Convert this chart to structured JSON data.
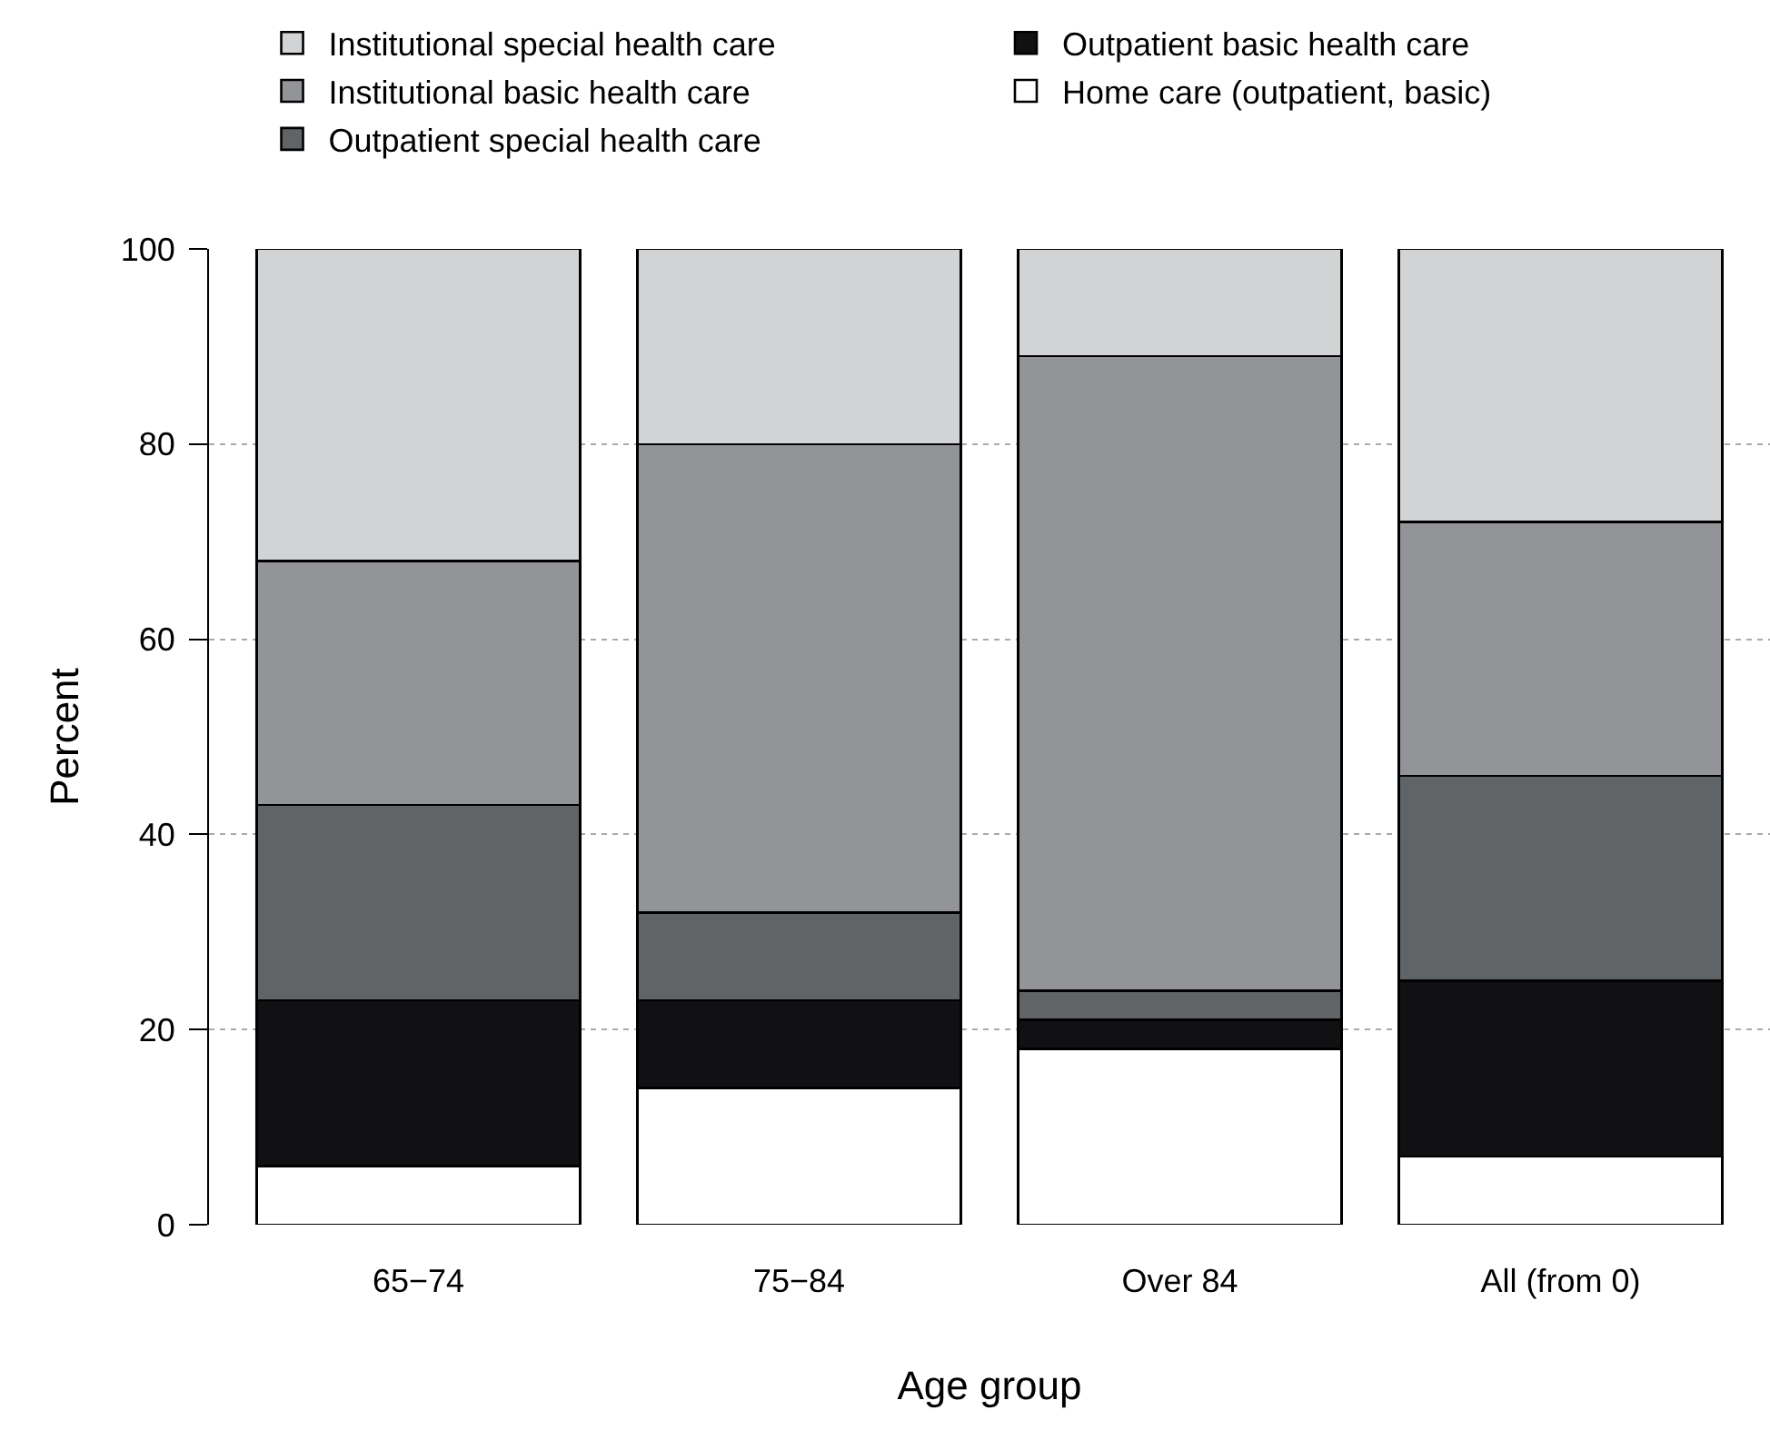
{
  "chart_data": {
    "type": "bar",
    "stacked": true,
    "xlabel": "Age group",
    "ylabel": "Percent",
    "categories": [
      "65−74",
      "75−84",
      "Over 84",
      "All (from 0)"
    ],
    "series": [
      {
        "name": "Home care (outpatient, basic)",
        "color": "#ffffff",
        "values": [
          6,
          14,
          18,
          7
        ]
      },
      {
        "name": "Outpatient basic health care",
        "color": "#111114",
        "values": [
          17,
          9,
          3,
          18
        ]
      },
      {
        "name": "Outpatient special health care",
        "color": "#606467",
        "values": [
          20,
          9,
          3,
          21
        ]
      },
      {
        "name": "Institutional basic health care",
        "color": "#939498",
        "values": [
          25,
          48,
          65,
          26
        ]
      },
      {
        "name": "Institutional special health care",
        "color": "#d2d3d5",
        "values": [
          32,
          20,
          11,
          28
        ]
      }
    ],
    "ylim": [
      0,
      100
    ],
    "yticks": [
      0,
      20,
      40,
      60,
      80,
      100
    ],
    "grid": "y",
    "legend": "top"
  }
}
